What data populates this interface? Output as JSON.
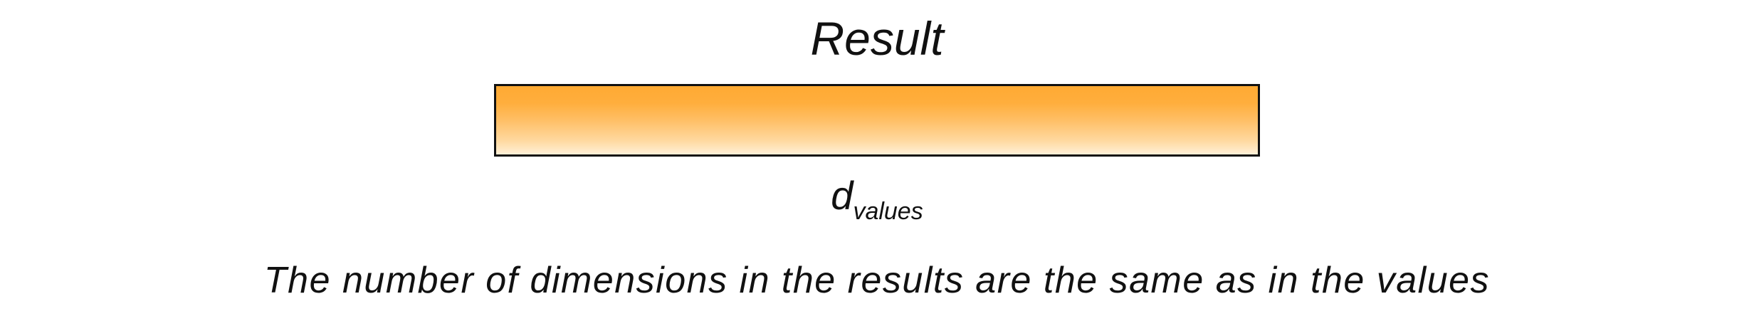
{
  "diagram": {
    "title": "Result",
    "bar": {
      "fill_top": "#ffaa33",
      "fill_bottom": "#fff0d8",
      "border": "#111111"
    },
    "dimension_label": {
      "main": "d",
      "subscript": "values"
    },
    "caption": "The number of dimensions in the results are the same as in the values"
  }
}
